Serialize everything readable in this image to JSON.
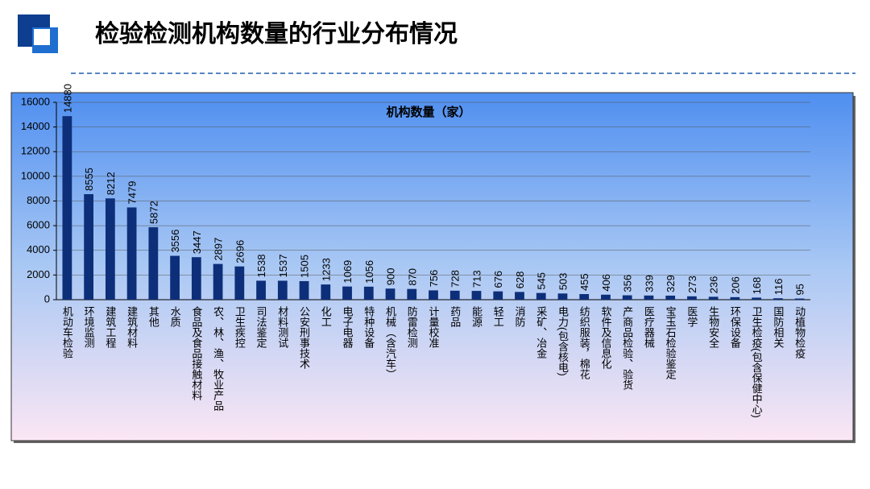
{
  "header": {
    "title": "检验检测机构数量的行业分布情况"
  },
  "chart_data": {
    "type": "bar",
    "title": "机构数量（家）",
    "categories": [
      "机动车检验",
      "环境监测",
      "建筑工程",
      "建筑材料",
      "其他",
      "水质",
      "食品及食品接触材料",
      "农、林、渔、牧业产品",
      "卫生疾控",
      "司法鉴定",
      "材料测试",
      "公安刑事技术",
      "化工",
      "电子电器",
      "特种设备",
      "机械（含汽车）",
      "防雷检测",
      "计量校准",
      "药品",
      "能源",
      "轻工",
      "消防",
      "采矿、冶金",
      "电力(包含核电)",
      "纺织服装，棉花",
      "软件及信息化",
      "产商品检验、验货",
      "医疗器械",
      "宝玉石检验鉴定",
      "医学",
      "生物安全",
      "环保设备",
      "卫生检疫(包含保健中心)",
      "国防相关",
      "动植物检疫"
    ],
    "values": [
      14880,
      8555,
      8212,
      7479,
      5872,
      3556,
      3447,
      2897,
      2696,
      1538,
      1537,
      1505,
      1233,
      1069,
      1056,
      900,
      870,
      756,
      728,
      713,
      676,
      628,
      545,
      503,
      455,
      406,
      356,
      339,
      329,
      273,
      236,
      206,
      168,
      116,
      95
    ],
    "color": "#0d2f7a",
    "ylim": [
      0,
      16000
    ],
    "yticks": [
      0,
      2000,
      4000,
      6000,
      8000,
      10000,
      12000,
      14000,
      16000
    ],
    "grid": true
  }
}
